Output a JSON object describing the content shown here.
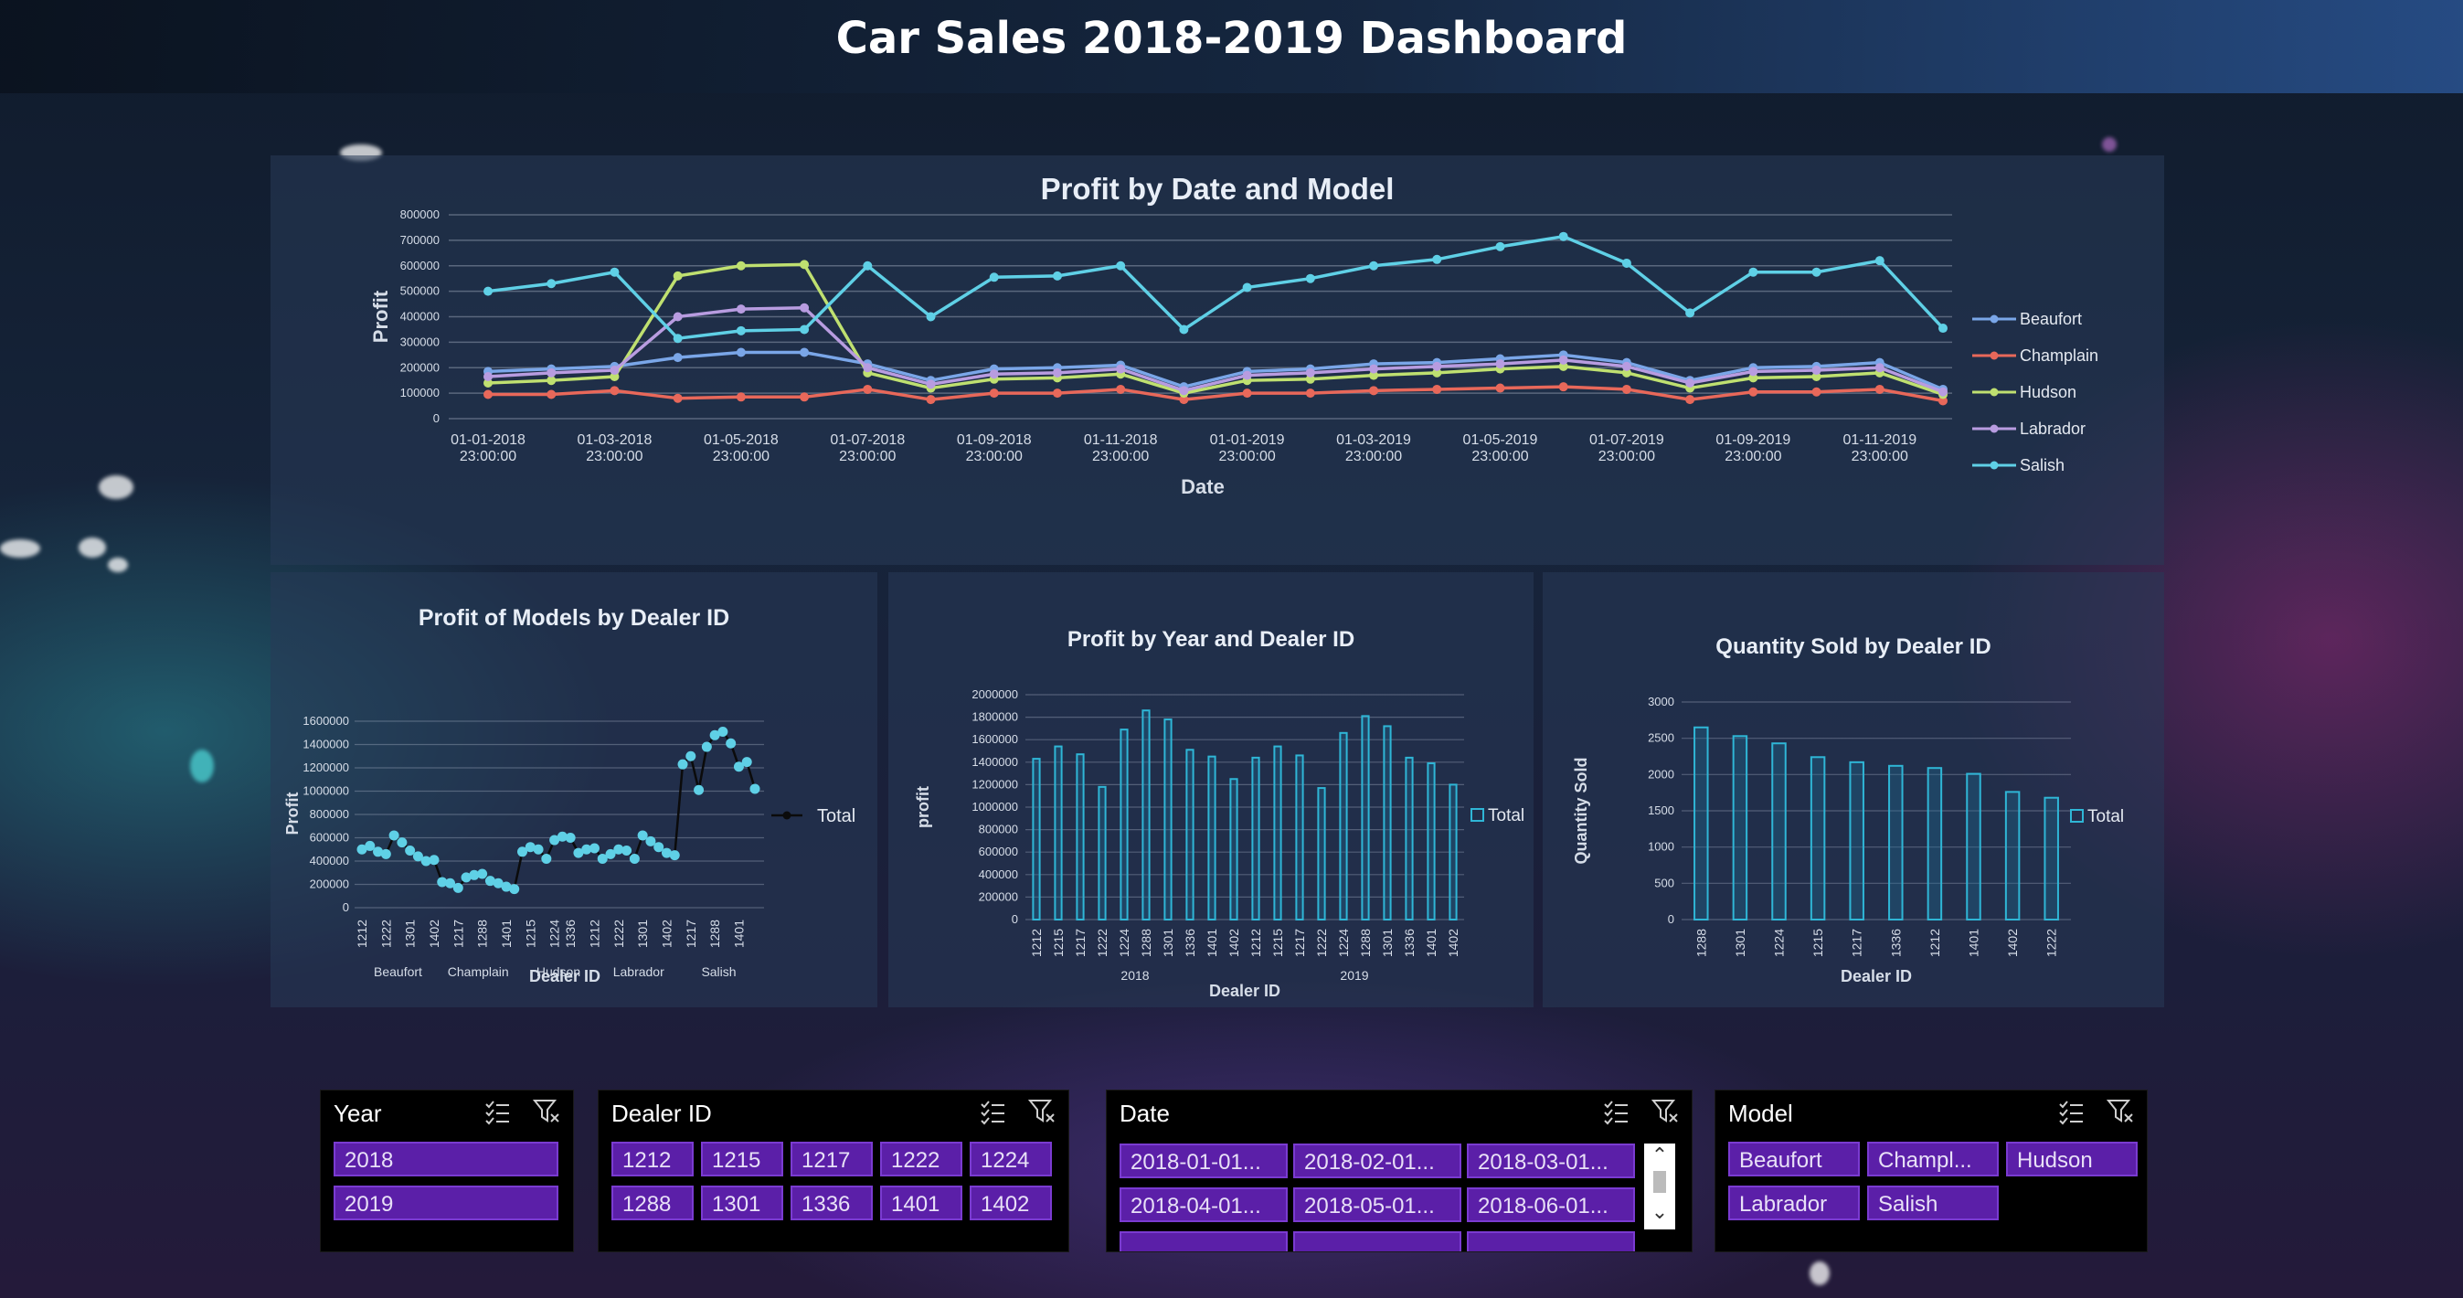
{
  "page": {
    "title": "Car Sales 2018-2019 Dashboard"
  },
  "charts": {
    "main": {
      "title": "Profit by Date and Model",
      "ylabel": "Profit",
      "xlabel": "Date"
    },
    "models": {
      "title": "Profit of  Models by Dealer ID",
      "ylabel": "Profit",
      "xlabel": "Dealer ID",
      "legend": "Total"
    },
    "year": {
      "title": "Profit by Year and Dealer ID",
      "ylabel": "profit",
      "xlabel": "Dealer ID",
      "legend": "Total"
    },
    "qty": {
      "title": "Quantity Sold by Dealer ID",
      "ylabel": "Quantity Sold",
      "xlabel": "Dealer ID",
      "legend": "Total"
    }
  },
  "chart_data": [
    {
      "type": "line",
      "title": "Profit by Date and Model",
      "xlabel": "Date",
      "ylabel": "Profit",
      "ylim": [
        0,
        800000
      ],
      "yticks": [
        0,
        100000,
        200000,
        300000,
        400000,
        500000,
        600000,
        700000,
        800000
      ],
      "x": [
        "2018-01",
        "2018-02",
        "2018-03",
        "2018-04",
        "2018-05",
        "2018-06",
        "2018-07",
        "2018-08",
        "2018-09",
        "2018-10",
        "2018-11",
        "2018-12",
        "2019-01",
        "2019-02",
        "2019-03",
        "2019-04",
        "2019-05",
        "2019-06",
        "2019-07",
        "2019-08",
        "2019-09",
        "2019-10",
        "2019-11",
        "2019-12"
      ],
      "xtick_labels": [
        [
          "01-01-2018",
          "23:00:00"
        ],
        [
          "01-03-2018",
          "23:00:00"
        ],
        [
          "01-05-2018",
          "23:00:00"
        ],
        [
          "01-07-2018",
          "23:00:00"
        ],
        [
          "01-09-2018",
          "23:00:00"
        ],
        [
          "01-11-2018",
          "23:00:00"
        ],
        [
          "01-01-2019",
          "23:00:00"
        ],
        [
          "01-03-2019",
          "23:00:00"
        ],
        [
          "01-05-2019",
          "23:00:00"
        ],
        [
          "01-07-2019",
          "23:00:00"
        ],
        [
          "01-09-2019",
          "23:00:00"
        ],
        [
          "01-11-2019",
          "23:00:00"
        ]
      ],
      "grid": true,
      "legend": "right",
      "series": [
        {
          "name": "Beaufort",
          "color": "#7aa6e8",
          "values": [
            185000,
            195000,
            205000,
            240000,
            260000,
            260000,
            215000,
            150000,
            195000,
            200000,
            210000,
            125000,
            185000,
            195000,
            215000,
            220000,
            235000,
            250000,
            220000,
            150000,
            200000,
            205000,
            220000,
            115000
          ]
        },
        {
          "name": "Champlain",
          "color": "#e8685a",
          "values": [
            95000,
            95000,
            110000,
            80000,
            85000,
            85000,
            115000,
            75000,
            100000,
            100000,
            115000,
            75000,
            100000,
            100000,
            110000,
            115000,
            120000,
            125000,
            115000,
            75000,
            105000,
            105000,
            115000,
            70000
          ]
        },
        {
          "name": "Hudson",
          "color": "#bfe070",
          "values": [
            140000,
            150000,
            165000,
            560000,
            600000,
            605000,
            180000,
            120000,
            155000,
            160000,
            175000,
            100000,
            150000,
            155000,
            170000,
            180000,
            195000,
            205000,
            180000,
            120000,
            160000,
            165000,
            180000,
            95000
          ]
        },
        {
          "name": "Labrador",
          "color": "#b89ce0",
          "values": [
            165000,
            180000,
            190000,
            400000,
            430000,
            435000,
            200000,
            135000,
            175000,
            180000,
            195000,
            110000,
            170000,
            180000,
            195000,
            205000,
            215000,
            230000,
            205000,
            140000,
            185000,
            190000,
            200000,
            105000
          ]
        },
        {
          "name": "Salish",
          "color": "#5fd0e6",
          "values": [
            500000,
            530000,
            575000,
            315000,
            345000,
            350000,
            600000,
            400000,
            555000,
            560000,
            600000,
            350000,
            515000,
            550000,
            600000,
            625000,
            675000,
            715000,
            610000,
            415000,
            575000,
            575000,
            620000,
            355000
          ]
        }
      ]
    },
    {
      "type": "line",
      "title": "Profit of  Models by Dealer ID",
      "xlabel": "Dealer ID",
      "ylabel": "Profit",
      "ylim": [
        0,
        1600000
      ],
      "yticks": [
        0,
        200000,
        400000,
        600000,
        800000,
        1000000,
        1200000,
        1400000,
        1600000
      ],
      "groups": [
        {
          "name": "Beaufort",
          "categories": [
            "1212",
            "1215",
            "1217",
            "1222",
            "1224",
            "1288",
            "1301",
            "1336",
            "1401",
            "1402"
          ],
          "values": [
            500000,
            530000,
            480000,
            460000,
            620000,
            560000,
            490000,
            440000,
            400000,
            410000
          ]
        },
        {
          "name": "Champlain",
          "categories": [
            "1212",
            "1215",
            "1217",
            "1222",
            "1224",
            "1288",
            "1301",
            "1336",
            "1401",
            "1402"
          ],
          "values": [
            220000,
            210000,
            170000,
            260000,
            280000,
            290000,
            230000,
            210000,
            180000,
            160000
          ]
        },
        {
          "name": "Hudson",
          "categories": [
            "1212",
            "1215",
            "1217",
            "1222",
            "1224",
            "1288",
            "1301",
            "1336",
            "1401",
            "1402"
          ],
          "values": [
            480000,
            520000,
            500000,
            420000,
            580000,
            610000,
            600000,
            470000,
            500000,
            510000
          ]
        },
        {
          "name": "Labrador",
          "categories": [
            "1212",
            "1215",
            "1217",
            "1222",
            "1224",
            "1288",
            "1301",
            "1336",
            "1401",
            "1402"
          ],
          "values": [
            420000,
            460000,
            500000,
            490000,
            420000,
            620000,
            570000,
            520000,
            470000,
            450000
          ]
        },
        {
          "name": "Salish",
          "categories": [
            "1212",
            "1215",
            "1217",
            "1222",
            "1224",
            "1288",
            "1301",
            "1336",
            "1401",
            "1402"
          ],
          "values": [
            1230000,
            1300000,
            1010000,
            1380000,
            1480000,
            1510000,
            1410000,
            1210000,
            1250000,
            1020000
          ]
        }
      ],
      "visible_tick_labels": [
        "1212",
        "1222",
        "1301",
        "1402",
        "1217",
        "1288",
        "1401",
        "1215",
        "1224",
        "1336",
        "1212",
        "1222",
        "1301",
        "1402",
        "1217",
        "1288",
        "1401"
      ],
      "series": [
        {
          "name": "Total",
          "color": "#5fd0e6"
        }
      ],
      "legend": "right",
      "grid": true
    },
    {
      "type": "bar",
      "title": "Profit by Year and Dealer ID",
      "xlabel": "Dealer ID",
      "ylabel": "profit",
      "ylim": [
        0,
        2000000
      ],
      "yticks": [
        0,
        200000,
        400000,
        600000,
        800000,
        1000000,
        1200000,
        1400000,
        1600000,
        1800000,
        2000000
      ],
      "groups": [
        {
          "name": "2018",
          "categories": [
            "1212",
            "1215",
            "1217",
            "1222",
            "1224",
            "1288",
            "1301",
            "1336",
            "1401",
            "1402"
          ],
          "values": [
            1430000,
            1540000,
            1470000,
            1180000,
            1690000,
            1860000,
            1780000,
            1510000,
            1450000,
            1250000
          ]
        },
        {
          "name": "2019",
          "categories": [
            "1212",
            "1215",
            "1217",
            "1222",
            "1224",
            "1288",
            "1301",
            "1336",
            "1401",
            "1402"
          ],
          "values": [
            1440000,
            1540000,
            1460000,
            1170000,
            1660000,
            1810000,
            1720000,
            1440000,
            1390000,
            1200000
          ]
        }
      ],
      "series": [
        {
          "name": "Total",
          "color": "#2fb6d6"
        }
      ],
      "legend": "right",
      "grid": true
    },
    {
      "type": "bar",
      "title": "Quantity Sold by Dealer ID",
      "xlabel": "Dealer ID",
      "ylabel": "Quantity Sold",
      "ylim": [
        0,
        3000
      ],
      "yticks": [
        0,
        500,
        1000,
        1500,
        2000,
        2500,
        3000
      ],
      "categories": [
        "1288",
        "1301",
        "1224",
        "1215",
        "1217",
        "1336",
        "1212",
        "1401",
        "1402",
        "1222"
      ],
      "values": [
        2650,
        2530,
        2430,
        2240,
        2170,
        2120,
        2090,
        2010,
        1760,
        1680
      ],
      "series": [
        {
          "name": "Total",
          "color": "#2fb6d6"
        }
      ],
      "legend": "right",
      "grid": true
    }
  ],
  "slicers": {
    "year": {
      "title": "Year",
      "items": [
        "2018",
        "2019"
      ]
    },
    "dealer": {
      "title": "Dealer ID",
      "items": [
        "1212",
        "1215",
        "1217",
        "1222",
        "1224",
        "1288",
        "1301",
        "1336",
        "1401",
        "1402"
      ]
    },
    "date": {
      "title": "Date",
      "items": [
        "2018-01-01...",
        "2018-02-01...",
        "2018-03-01...",
        "2018-04-01...",
        "2018-05-01...",
        "2018-06-01..."
      ]
    },
    "model": {
      "title": "Model",
      "items": [
        "Beaufort",
        "Champl...",
        "Hudson",
        "Labrador",
        "Salish"
      ]
    }
  },
  "icons": {
    "multiselect": "multi-select-icon",
    "clear_filter": "clear-filter-icon",
    "scroll_up": "scroll-up-icon",
    "scroll_down": "scroll-down-icon"
  }
}
